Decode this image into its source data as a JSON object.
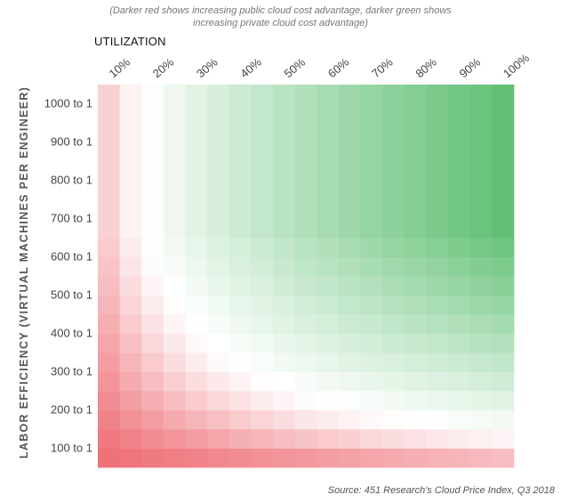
{
  "chart_data": {
    "type": "heatmap",
    "subtitle_lines": [
      "(Darker red shows increasing public cloud cost advantage, darker green shows",
      "increasing private cloud cost advantage)"
    ],
    "xlabel": "UTILIZATION",
    "ylabel": "LABOR EFFICIENCY (VIRTUAL MACHINES PER ENGINEER)",
    "x_tick_labels": [
      "10%",
      "20%",
      "30%",
      "40%",
      "50%",
      "60%",
      "70%",
      "80%",
      "90%",
      "100%"
    ],
    "y_tick_labels": [
      "1000 to 1",
      "900 to 1",
      "800 to 1",
      "700 to 1",
      "600 to 1",
      "500 to 1",
      "400 to 1",
      "300 to 1",
      "200 to 1",
      "100 to 1"
    ],
    "x_range": [
      10,
      100
    ],
    "y_range": [
      50,
      1000
    ],
    "x_step": 5,
    "y_step": 50,
    "value_scale": "negative = public cloud cost advantage (red), positive = private cloud cost advantage (green)",
    "colors": {
      "negative": "#ec5f67",
      "positive": "#5fbf73",
      "neutral": "#ffffff"
    },
    "source": "Source: 451 Research's Cloud Price Index, Q3 2018"
  }
}
